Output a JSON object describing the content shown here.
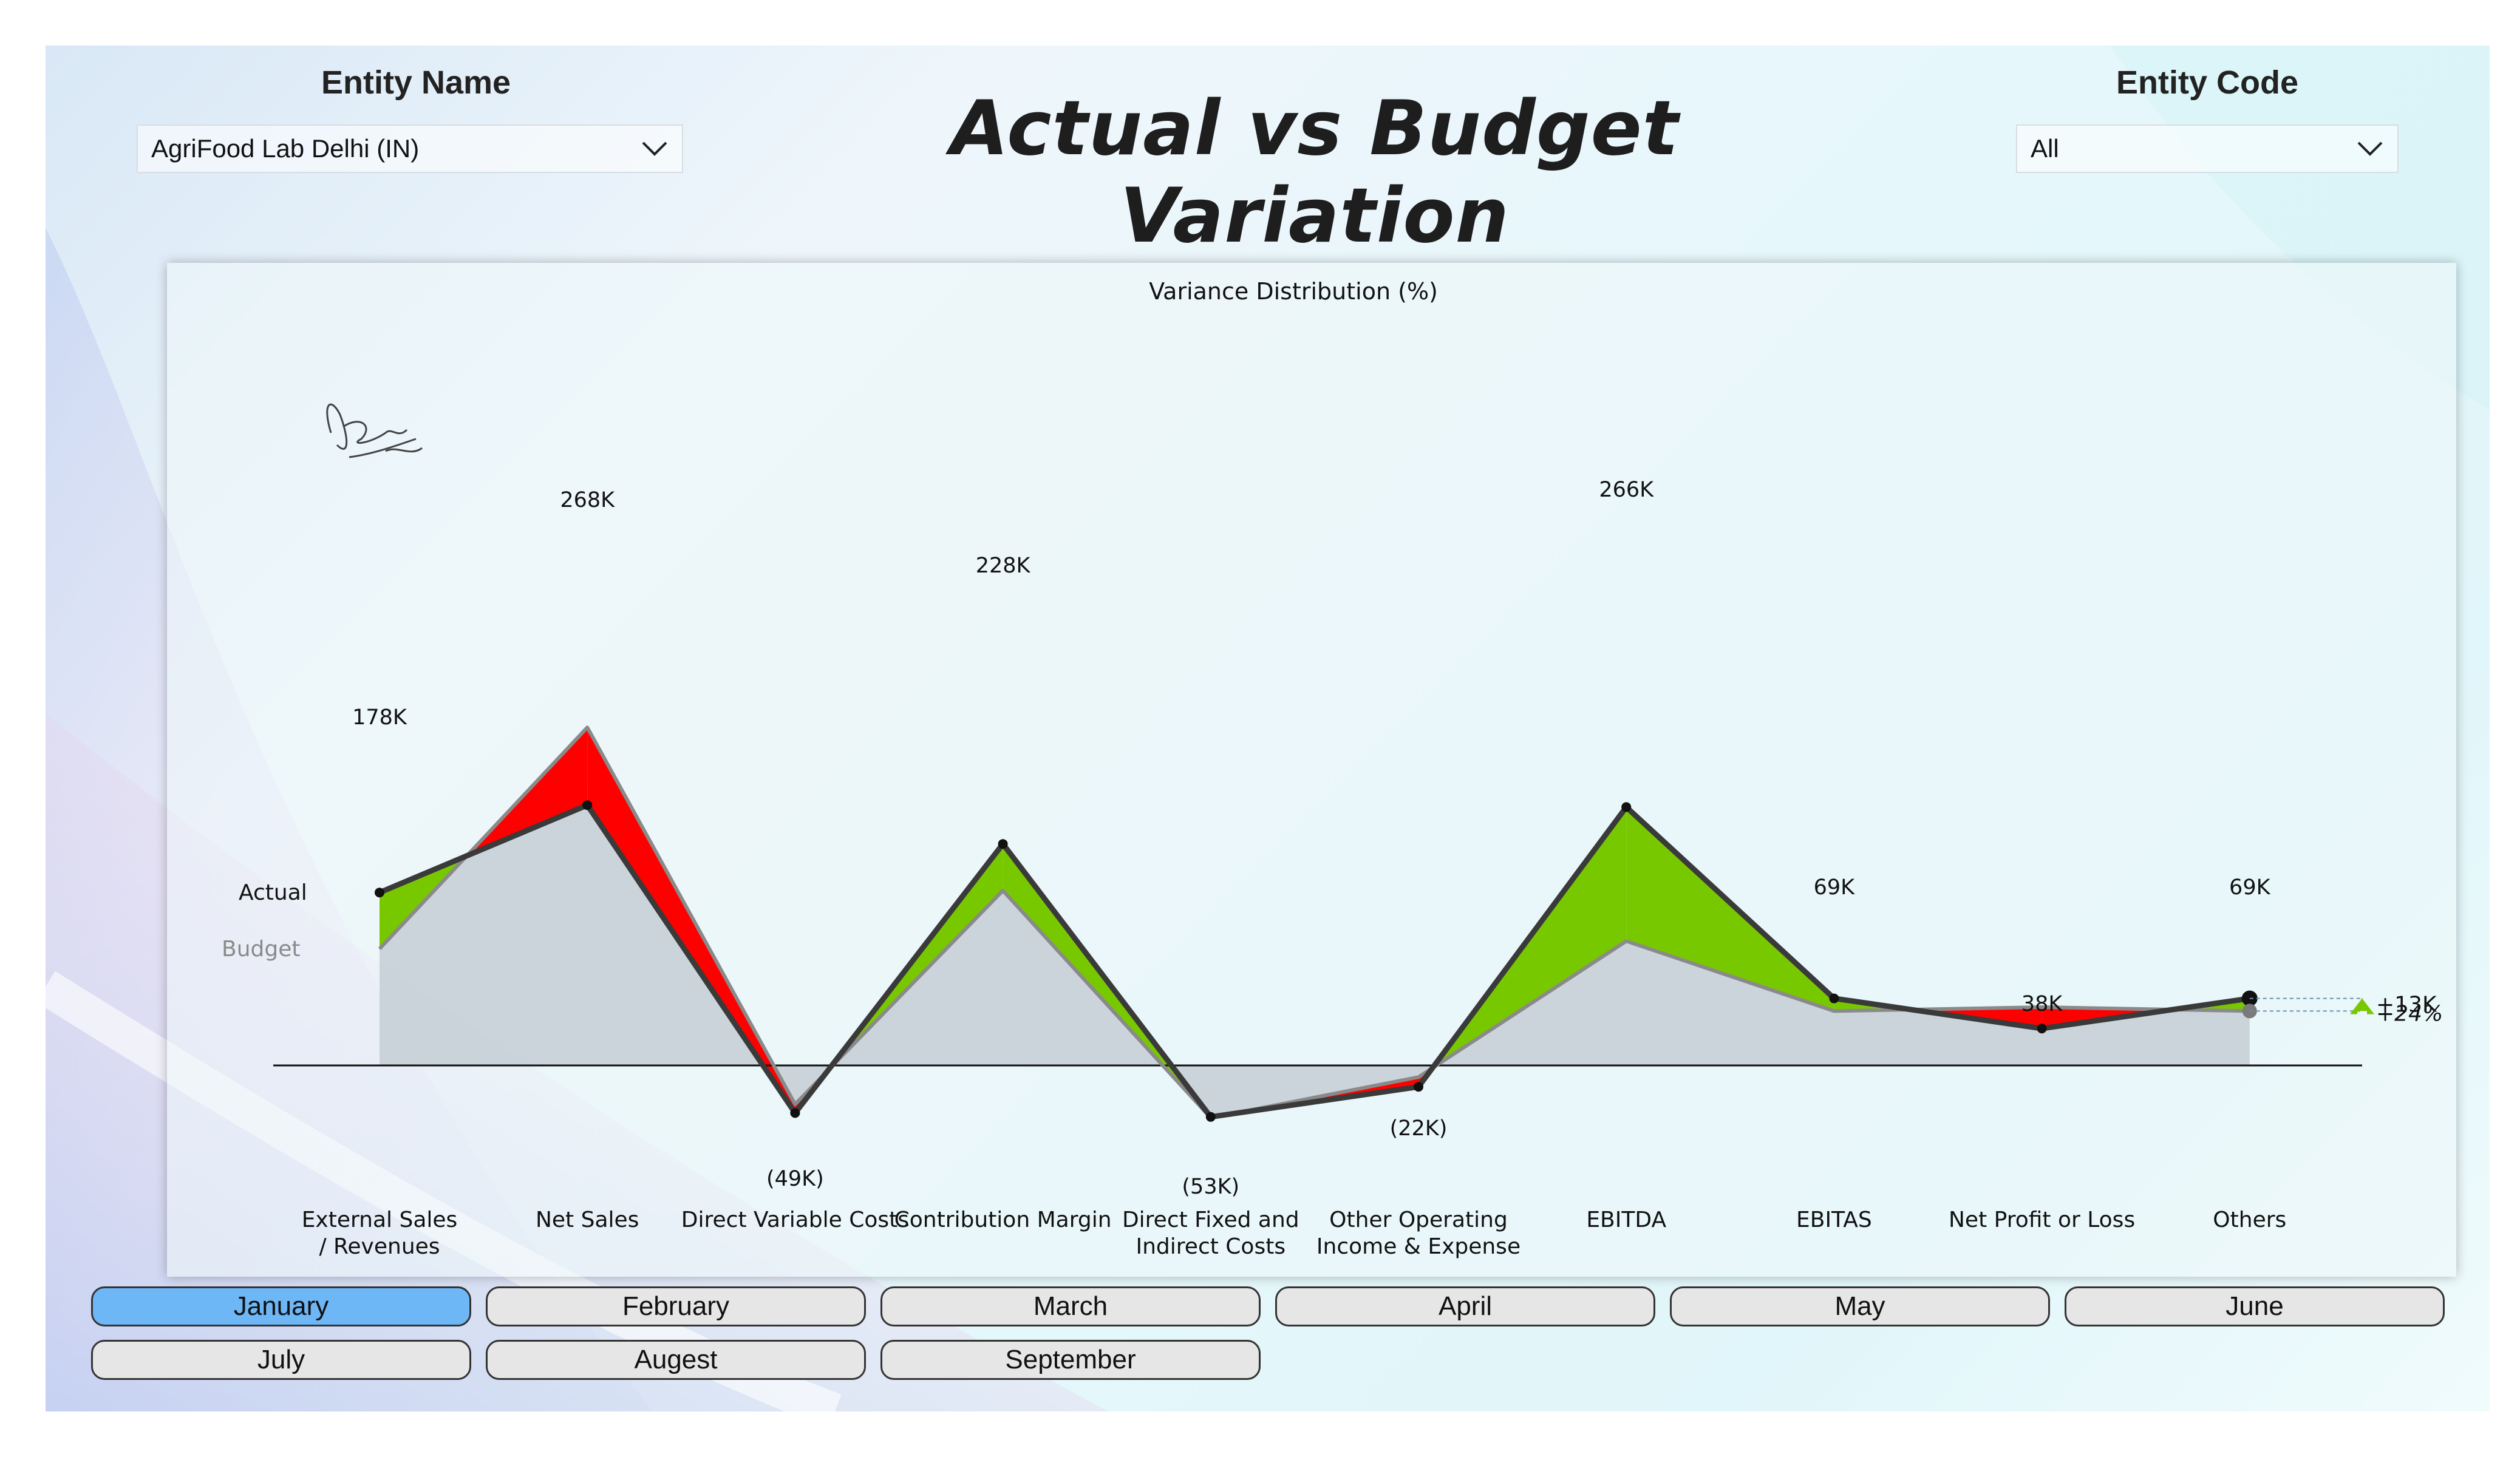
{
  "header": {
    "title": "Actual vs Budget Variation",
    "entity_name_label": "Entity Name",
    "entity_name_value": "AgriFood Lab Delhi (IN)",
    "entity_code_label": "Entity Code",
    "entity_code_value": "All"
  },
  "chart_data": {
    "type": "area",
    "title": "Variance Distribution (%)",
    "categories": [
      "External Sales / Revenues",
      "Net Sales",
      "Direct Variable Costs",
      "Contribution Margin",
      "Direct Fixed and Indirect Costs",
      "Other Operating Income & Expense",
      "EBITDA",
      "EBITAS",
      "Net Profit or Loss",
      "Others"
    ],
    "series": [
      {
        "name": "Actual",
        "values": [
          178,
          268,
          -49,
          228,
          -53,
          -22,
          266,
          69,
          38,
          69
        ]
      },
      {
        "name": "Budget",
        "values": [
          120,
          348,
          -40,
          180,
          -54,
          -12,
          128,
          56,
          60,
          56
        ]
      }
    ],
    "data_labels": [
      "178K",
      "268K",
      "(49K)",
      "228K",
      "(53K)",
      "(22K)",
      "266K",
      "69K",
      "38K",
      "69K"
    ],
    "units": "K",
    "variance_label": "+13K",
    "variance_percent": "+24%",
    "colors": {
      "positive": "#78c800",
      "negative": "#ff0000",
      "budget_fill": "#c4ced3",
      "actual_line": "#3a3a3a",
      "budget_line": "#8a8a8a"
    },
    "legend_placement": "left"
  },
  "months": [
    "January",
    "February",
    "March",
    "April",
    "May",
    "June",
    "July",
    "Augest",
    "September"
  ],
  "selected_month": "January",
  "icons": {
    "dropdown": "chevron-down-icon",
    "variance_arrow": "arrow-up-icon",
    "signature": "signature-mark"
  }
}
